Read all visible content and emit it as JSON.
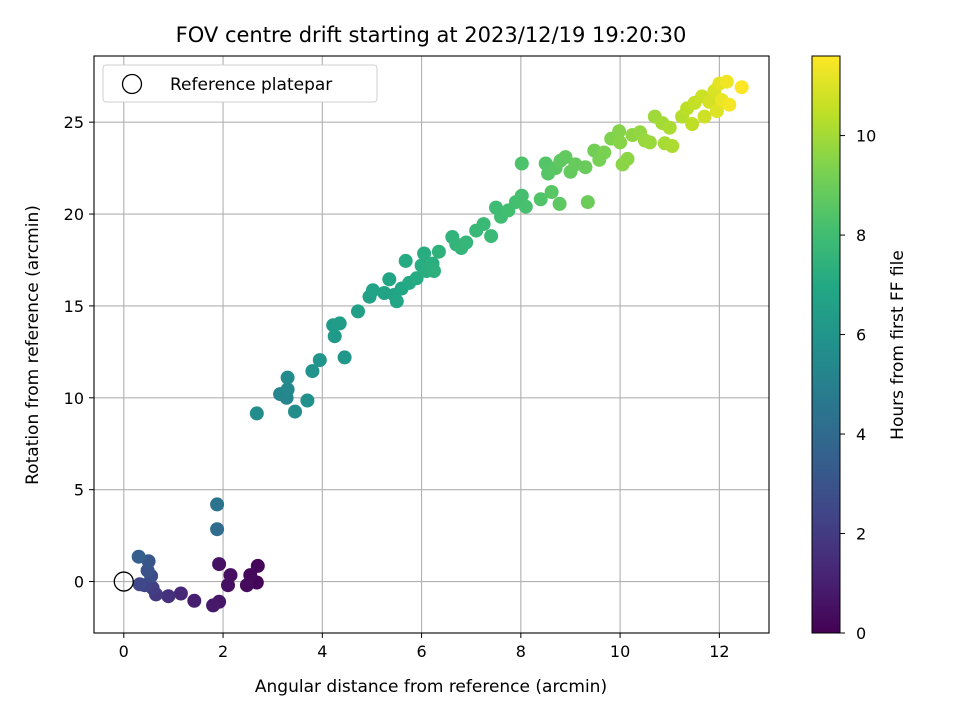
{
  "chart_data": {
    "type": "scatter",
    "title": "FOV centre drift starting at 2023/12/19 19:20:30",
    "xlabel": "Angular distance from reference (arcmin)",
    "ylabel": "Rotation from reference (arcmin)",
    "xlim": [
      -0.6,
      13.0
    ],
    "ylim": [
      -2.8,
      28.6
    ],
    "xticks": [
      0,
      2,
      4,
      6,
      8,
      10,
      12
    ],
    "yticks": [
      0,
      5,
      10,
      15,
      20,
      25
    ],
    "grid": true,
    "legend": {
      "entries": [
        "Reference platepar"
      ],
      "placement": "top-left"
    },
    "reference_point": {
      "x": 0,
      "y": 0,
      "label": "Reference platepar"
    },
    "colorbar": {
      "label": "Hours from first FF file",
      "colormap": "viridis",
      "range": [
        0,
        11.6
      ],
      "ticks": [
        0,
        2,
        4,
        6,
        8,
        10
      ]
    },
    "points": [
      {
        "x": 2.68,
        "y": -0.05,
        "t": 0.1
      },
      {
        "x": 2.7,
        "y": 0.85,
        "t": 0.2
      },
      {
        "x": 2.55,
        "y": 0.35,
        "t": 0.25
      },
      {
        "x": 2.48,
        "y": -0.2,
        "t": 0.35
      },
      {
        "x": 2.15,
        "y": 0.35,
        "t": 0.45
      },
      {
        "x": 2.1,
        "y": -0.2,
        "t": 0.5
      },
      {
        "x": 1.92,
        "y": 0.95,
        "t": 0.55
      },
      {
        "x": 1.92,
        "y": -1.1,
        "t": 0.7
      },
      {
        "x": 1.8,
        "y": -1.3,
        "t": 0.8
      },
      {
        "x": 1.42,
        "y": -1.05,
        "t": 1.0
      },
      {
        "x": 1.15,
        "y": -0.65,
        "t": 1.3
      },
      {
        "x": 0.9,
        "y": -0.8,
        "t": 1.6
      },
      {
        "x": 0.65,
        "y": -0.7,
        "t": 1.9
      },
      {
        "x": 0.58,
        "y": -0.35,
        "t": 2.1
      },
      {
        "x": 0.42,
        "y": -0.2,
        "t": 2.3
      },
      {
        "x": 0.32,
        "y": -0.15,
        "t": 2.5
      },
      {
        "x": 0.55,
        "y": 0.3,
        "t": 2.7
      },
      {
        "x": 0.48,
        "y": 0.6,
        "t": 2.9
      },
      {
        "x": 0.5,
        "y": 1.1,
        "t": 3.1
      },
      {
        "x": 0.3,
        "y": 1.35,
        "t": 3.5
      },
      {
        "x": 1.88,
        "y": 2.85,
        "t": 4.1
      },
      {
        "x": 1.88,
        "y": 4.2,
        "t": 4.4
      },
      {
        "x": 2.68,
        "y": 9.15,
        "t": 5.6
      },
      {
        "x": 3.15,
        "y": 10.2,
        "t": 5.2
      },
      {
        "x": 3.28,
        "y": 10.0,
        "t": 5.3
      },
      {
        "x": 3.3,
        "y": 10.45,
        "t": 5.4
      },
      {
        "x": 3.3,
        "y": 11.1,
        "t": 5.5
      },
      {
        "x": 3.45,
        "y": 9.25,
        "t": 5.6
      },
      {
        "x": 3.7,
        "y": 9.85,
        "t": 5.8
      },
      {
        "x": 3.8,
        "y": 11.45,
        "t": 5.9
      },
      {
        "x": 3.95,
        "y": 12.05,
        "t": 6.0
      },
      {
        "x": 4.45,
        "y": 12.2,
        "t": 6.1
      },
      {
        "x": 4.25,
        "y": 13.35,
        "t": 6.2
      },
      {
        "x": 4.22,
        "y": 13.95,
        "t": 6.3
      },
      {
        "x": 4.35,
        "y": 14.05,
        "t": 6.35
      },
      {
        "x": 4.72,
        "y": 14.7,
        "t": 6.5
      },
      {
        "x": 4.95,
        "y": 15.5,
        "t": 6.6
      },
      {
        "x": 5.02,
        "y": 15.85,
        "t": 6.65
      },
      {
        "x": 5.25,
        "y": 15.7,
        "t": 6.7
      },
      {
        "x": 5.45,
        "y": 15.6,
        "t": 6.75
      },
      {
        "x": 5.35,
        "y": 16.45,
        "t": 6.8
      },
      {
        "x": 5.5,
        "y": 15.25,
        "t": 6.85
      },
      {
        "x": 5.6,
        "y": 15.95,
        "t": 6.9
      },
      {
        "x": 5.75,
        "y": 16.25,
        "t": 7.0
      },
      {
        "x": 5.68,
        "y": 17.45,
        "t": 7.05
      },
      {
        "x": 5.9,
        "y": 16.5,
        "t": 7.1
      },
      {
        "x": 6.0,
        "y": 17.2,
        "t": 7.15
      },
      {
        "x": 6.05,
        "y": 17.85,
        "t": 7.2
      },
      {
        "x": 6.1,
        "y": 16.9,
        "t": 7.25
      },
      {
        "x": 6.22,
        "y": 17.3,
        "t": 7.3
      },
      {
        "x": 6.25,
        "y": 16.9,
        "t": 7.35
      },
      {
        "x": 6.35,
        "y": 17.95,
        "t": 7.4
      },
      {
        "x": 6.62,
        "y": 18.75,
        "t": 7.5
      },
      {
        "x": 6.7,
        "y": 18.35,
        "t": 7.55
      },
      {
        "x": 6.8,
        "y": 18.15,
        "t": 7.6
      },
      {
        "x": 6.9,
        "y": 18.45,
        "t": 7.65
      },
      {
        "x": 7.1,
        "y": 19.1,
        "t": 7.7
      },
      {
        "x": 7.25,
        "y": 19.45,
        "t": 7.75
      },
      {
        "x": 7.4,
        "y": 18.8,
        "t": 7.8
      },
      {
        "x": 7.5,
        "y": 20.35,
        "t": 7.9
      },
      {
        "x": 7.6,
        "y": 19.85,
        "t": 8.0
      },
      {
        "x": 7.75,
        "y": 20.2,
        "t": 8.05
      },
      {
        "x": 7.9,
        "y": 20.65,
        "t": 8.1
      },
      {
        "x": 8.02,
        "y": 21.0,
        "t": 8.15
      },
      {
        "x": 8.1,
        "y": 20.4,
        "t": 8.2
      },
      {
        "x": 8.02,
        "y": 22.75,
        "t": 8.3
      },
      {
        "x": 8.4,
        "y": 20.8,
        "t": 8.4
      },
      {
        "x": 8.5,
        "y": 22.75,
        "t": 8.45
      },
      {
        "x": 8.55,
        "y": 22.2,
        "t": 8.5
      },
      {
        "x": 8.62,
        "y": 21.2,
        "t": 8.55
      },
      {
        "x": 8.7,
        "y": 22.5,
        "t": 8.6
      },
      {
        "x": 8.78,
        "y": 20.55,
        "t": 8.65
      },
      {
        "x": 8.8,
        "y": 22.9,
        "t": 8.7
      },
      {
        "x": 8.9,
        "y": 23.1,
        "t": 8.75
      },
      {
        "x": 9.0,
        "y": 22.3,
        "t": 8.8
      },
      {
        "x": 9.1,
        "y": 22.7,
        "t": 8.85
      },
      {
        "x": 9.3,
        "y": 22.55,
        "t": 8.9
      },
      {
        "x": 9.35,
        "y": 20.65,
        "t": 8.95
      },
      {
        "x": 9.48,
        "y": 23.45,
        "t": 9.1
      },
      {
        "x": 9.58,
        "y": 22.95,
        "t": 9.2
      },
      {
        "x": 9.68,
        "y": 23.35,
        "t": 9.25
      },
      {
        "x": 9.82,
        "y": 24.1,
        "t": 9.35
      },
      {
        "x": 9.98,
        "y": 24.5,
        "t": 9.45
      },
      {
        "x": 10.0,
        "y": 23.9,
        "t": 9.5
      },
      {
        "x": 10.05,
        "y": 22.7,
        "t": 9.55
      },
      {
        "x": 10.15,
        "y": 23.0,
        "t": 9.6
      },
      {
        "x": 10.25,
        "y": 24.3,
        "t": 9.65
      },
      {
        "x": 10.4,
        "y": 24.45,
        "t": 9.7
      },
      {
        "x": 10.5,
        "y": 24.0,
        "t": 9.8
      },
      {
        "x": 10.6,
        "y": 23.9,
        "t": 9.85
      },
      {
        "x": 10.7,
        "y": 25.3,
        "t": 9.9
      },
      {
        "x": 10.85,
        "y": 24.95,
        "t": 10.0
      },
      {
        "x": 10.9,
        "y": 23.85,
        "t": 10.05
      },
      {
        "x": 11.0,
        "y": 24.7,
        "t": 10.1
      },
      {
        "x": 11.05,
        "y": 23.7,
        "t": 10.15
      },
      {
        "x": 11.25,
        "y": 25.3,
        "t": 10.3
      },
      {
        "x": 11.35,
        "y": 25.75,
        "t": 10.4
      },
      {
        "x": 11.45,
        "y": 24.9,
        "t": 10.45
      },
      {
        "x": 11.5,
        "y": 26.05,
        "t": 10.55
      },
      {
        "x": 11.65,
        "y": 26.4,
        "t": 10.7
      },
      {
        "x": 11.7,
        "y": 25.3,
        "t": 10.75
      },
      {
        "x": 11.8,
        "y": 26.1,
        "t": 10.85
      },
      {
        "x": 11.9,
        "y": 26.7,
        "t": 10.95
      },
      {
        "x": 11.95,
        "y": 25.6,
        "t": 11.05
      },
      {
        "x": 12.0,
        "y": 27.1,
        "t": 11.15
      },
      {
        "x": 12.05,
        "y": 26.2,
        "t": 11.25
      },
      {
        "x": 12.15,
        "y": 27.2,
        "t": 11.35
      },
      {
        "x": 12.2,
        "y": 25.95,
        "t": 11.45
      },
      {
        "x": 12.45,
        "y": 26.9,
        "t": 11.6
      }
    ]
  }
}
